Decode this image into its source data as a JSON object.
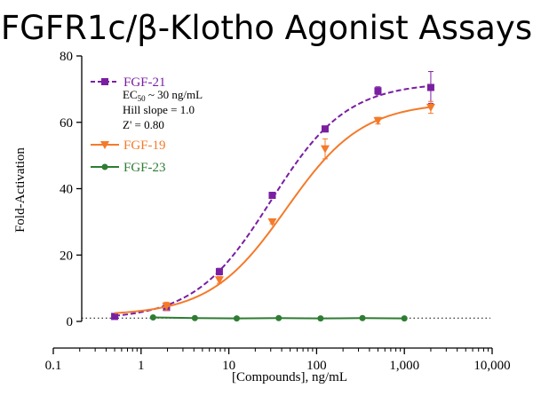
{
  "chart_data": {
    "type": "scatter",
    "title": "FGFR1c/β-Klotho Agonist Assays",
    "xlabel": "[Compounds], ng/mL",
    "ylabel": "Fold-Activation",
    "xscale": "log",
    "xlim": [
      0.1,
      10000
    ],
    "ylim": [
      0,
      80
    ],
    "x_ticks": [
      0.1,
      1,
      10,
      100,
      1000,
      10000
    ],
    "x_tick_labels": [
      "0.1",
      "1",
      "10",
      "100",
      "1,000",
      "10,000"
    ],
    "y_ticks": [
      0,
      20,
      40,
      60,
      80
    ],
    "y_tick_labels": [
      "0",
      "20",
      "40",
      "60",
      "80"
    ],
    "baseline_y": 1,
    "legend_position": "top-left",
    "notes": {
      "ec50_prefix": "EC",
      "ec50_sub": "50",
      "ec50_suffix": " ~ 30 ng/mL",
      "hill": "Hill slope = 1.0",
      "zprime": "Z' = 0.80"
    },
    "series": [
      {
        "name": "FGF-21",
        "color": "#7a1fa2",
        "marker": "square",
        "line": "dashed",
        "x": [
          0.5,
          1.95,
          7.8,
          31.25,
          125,
          500,
          2000
        ],
        "y": [
          1.5,
          4.2,
          15.0,
          38.0,
          58.0,
          69.5,
          70.5
        ],
        "err": [
          0.4,
          0.6,
          1.0,
          0.8,
          0.9,
          1.2,
          4.8
        ],
        "fit": {
          "bottom": 0.5,
          "top": 72,
          "ec50": 30,
          "hill": 1.0
        }
      },
      {
        "name": "FGF-19",
        "color": "#f47a2a",
        "marker": "triangle-down",
        "line": "solid",
        "x": [
          1.95,
          7.8,
          31.25,
          125,
          500,
          2000
        ],
        "y": [
          4.6,
          12.5,
          30.0,
          52.0,
          60.5,
          64.5
        ],
        "err": [
          1.2,
          1.0,
          0.6,
          3.0,
          1.0,
          1.8
        ],
        "fit": {
          "bottom": 1.8,
          "top": 66,
          "ec50": 45,
          "hill": 1.0
        }
      },
      {
        "name": "FGF-23",
        "color": "#2e7d32",
        "marker": "circle",
        "line": "solid",
        "x": [
          1.37,
          4.1,
          12.3,
          37,
          111,
          333,
          1000
        ],
        "y": [
          1.2,
          1.0,
          0.9,
          1.0,
          0.9,
          1.0,
          0.9
        ],
        "err": [
          0,
          0,
          0,
          0,
          0,
          0,
          0
        ]
      }
    ]
  }
}
